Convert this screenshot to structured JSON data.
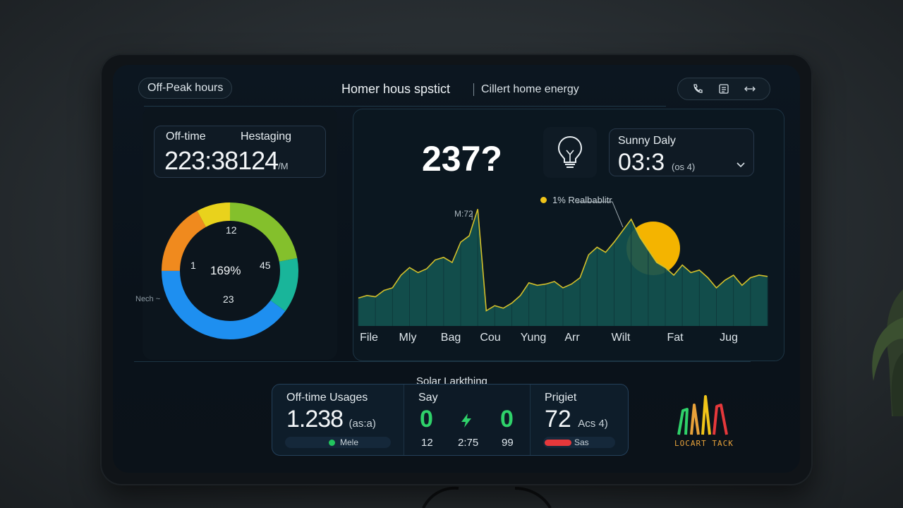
{
  "header": {
    "chip_label": "Off-Peak hours",
    "title": "Homer hous spstict",
    "subtitle": "Cillert home energy",
    "icons": [
      "phone-icon",
      "grid-icon",
      "swap-arrows-icon"
    ]
  },
  "left_panel": {
    "time_card": {
      "label_left": "Off-time",
      "label_right": "Hestaging",
      "value": "223:38124",
      "unit": "/M"
    },
    "donut": {
      "center_label": "169%",
      "top_label": "12",
      "left_label": "1",
      "right_label": "45",
      "bottom_label": "23",
      "segments": [
        {
          "color": "#84c02c",
          "fraction": 0.22
        },
        {
          "color": "#19b59a",
          "fraction": 0.13
        },
        {
          "color": "#1e8ff0",
          "fraction": 0.4
        },
        {
          "color": "#f08a1e",
          "fraction": 0.17
        },
        {
          "color": "#e9d21c",
          "fraction": 0.08
        }
      ]
    },
    "side_label": "Nech ~"
  },
  "main_panel": {
    "big_number": "237?",
    "bulb_icon": "lightbulb-icon",
    "sunny_card": {
      "title": "Sunny Daly",
      "value": "03:3",
      "suffix": "(os 4)"
    },
    "legend_label": "1%  Realbablitr",
    "peak_label": "M:72",
    "x_labels": [
      "File",
      "Mly",
      "Bag",
      "Cou",
      "Yung",
      "Arr",
      "Wilt",
      "Fat",
      "Jug"
    ]
  },
  "chart_data": {
    "type": "area",
    "categories": [
      "File",
      "Mly",
      "Bag",
      "Cou",
      "Yung",
      "Arr",
      "Wilt",
      "Fat",
      "Jug"
    ],
    "x": [
      0,
      1,
      2,
      3,
      4,
      5,
      6,
      7,
      8,
      9,
      10,
      11,
      12,
      13,
      14,
      15,
      16,
      17,
      18,
      19,
      20,
      21,
      22,
      23,
      24,
      25,
      26,
      27,
      28,
      29,
      30,
      31,
      32,
      33,
      34,
      35,
      36,
      37,
      38,
      39,
      40,
      41,
      42,
      43,
      44,
      45,
      46,
      47,
      48
    ],
    "values": [
      22,
      24,
      23,
      28,
      30,
      40,
      46,
      42,
      45,
      52,
      54,
      50,
      66,
      71,
      92,
      12,
      16,
      14,
      18,
      24,
      34,
      32,
      33,
      35,
      30,
      33,
      38,
      56,
      62,
      58,
      66,
      75,
      84,
      70,
      60,
      50,
      46,
      40,
      48,
      42,
      44,
      38,
      30,
      36,
      40,
      32,
      38,
      40,
      39
    ],
    "legend": [
      {
        "name": "Realbablitr",
        "color": "#f0c419"
      }
    ],
    "annotations": [
      {
        "text": "M:72"
      }
    ],
    "fill_color": "#14524f",
    "line_color": "#d4c02a",
    "sun_color": "#f4b400"
  },
  "bottom": {
    "section_title": "Solar Larkthing",
    "usage": {
      "title": "Off-time Usages",
      "value": "1.238",
      "unit": "(as:a)",
      "pill_label": "Mele",
      "dot_color": "#22c55e"
    },
    "say": {
      "title": "Say",
      "left_value": "0",
      "right_value": "0",
      "foot_left": "12",
      "foot_mid": "2:75",
      "foot_right": "99",
      "value_color": "#2fd26a"
    },
    "project": {
      "title": "Prigiet",
      "value": "72",
      "unit": "Acs 4)",
      "pill_label": "Sas",
      "bar_color": "#e5383b",
      "bar_fraction": 0.37
    }
  },
  "logo": {
    "text": "LOCART TACK",
    "bar_colors": [
      "#2fd26a",
      "#e8a23a",
      "#f0c419",
      "#e5383b"
    ]
  }
}
